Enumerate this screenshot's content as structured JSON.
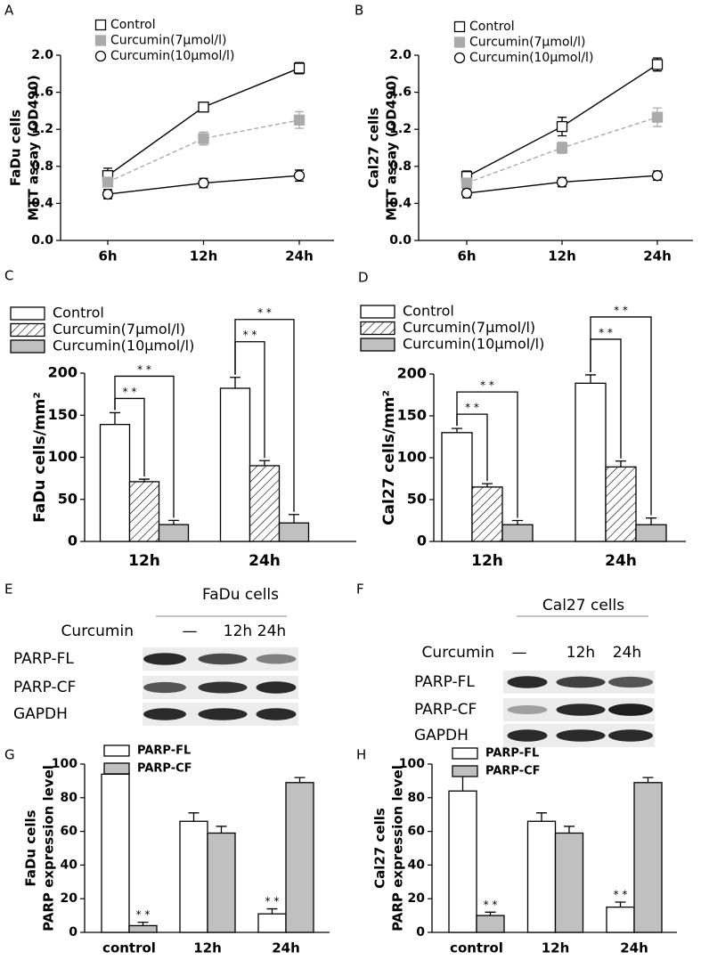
{
  "chart_data": [
    {
      "panel": "A",
      "type": "line",
      "categories": [
        "6h",
        "12h",
        "24h"
      ],
      "ylabel": [
        "FaDu cells",
        "MTT assay (OD490)"
      ],
      "ylim": [
        0,
        2
      ],
      "yticks": [
        {
          "value": 0,
          "label": "0.0"
        },
        0.4,
        0.8,
        1.2,
        1.6,
        {
          "value": 2,
          "label": "2.0"
        }
      ],
      "series": [
        {
          "name": "Control",
          "color": "#000000",
          "marker": "square",
          "filled": false,
          "dashed": false,
          "values": [
            0.7,
            1.44,
            1.86
          ],
          "errors": [
            0.08,
            0.05,
            0.06
          ]
        },
        {
          "name": "Curcumin(7μmol/l)",
          "color": "#aaaaaa",
          "marker": "square",
          "filled": true,
          "dashed": true,
          "values": [
            0.63,
            1.1,
            1.3
          ],
          "errors": [
            0.05,
            0.07,
            0.09
          ]
        },
        {
          "name": "Curcumin(10μmol/l)",
          "color": "#000000",
          "marker": "circle",
          "filled": false,
          "dashed": false,
          "values": [
            0.5,
            0.62,
            0.7
          ],
          "errors": [
            0.05,
            0.05,
            0.06
          ]
        }
      ]
    },
    {
      "panel": "B",
      "type": "line",
      "categories": [
        "6h",
        "12h",
        "24h"
      ],
      "ylabel": [
        "Cal27 cells",
        "MTT assay (OD490)"
      ],
      "ylim": [
        0,
        2
      ],
      "yticks": [
        {
          "value": 0,
          "label": "0.0"
        },
        0.4,
        0.8,
        1.2,
        1.6,
        {
          "value": 2,
          "label": "2.0"
        }
      ],
      "series": [
        {
          "name": "Control",
          "color": "#000000",
          "marker": "square",
          "filled": false,
          "dashed": false,
          "values": [
            0.69,
            1.23,
            1.9
          ],
          "errors": [
            0.06,
            0.1,
            0.07
          ]
        },
        {
          "name": "Curcumin(7μmol/l)",
          "color": "#aaaaaa",
          "marker": "square",
          "filled": true,
          "dashed": true,
          "values": [
            0.62,
            1.0,
            1.33
          ],
          "errors": [
            0.05,
            0.06,
            0.1
          ]
        },
        {
          "name": "Curcumin(10μmol/l)",
          "color": "#000000",
          "marker": "circle",
          "filled": false,
          "dashed": false,
          "values": [
            0.51,
            0.63,
            0.7
          ],
          "errors": [
            0.05,
            0.05,
            0.05
          ]
        }
      ]
    },
    {
      "panel": "C",
      "type": "bar",
      "categories": [
        "12h",
        "24h"
      ],
      "ylabel": [
        "FaDu cells/mm²"
      ],
      "ylim": [
        0,
        200
      ],
      "yticks": [
        0,
        50,
        100,
        150,
        200
      ],
      "series": [
        {
          "name": "Control",
          "color": "#ffffff",
          "values": [
            139,
            182
          ],
          "errors": [
            14,
            13
          ]
        },
        {
          "name": "Curcumin(7μmol/l)",
          "color": "#ffffff",
          "pattern": "hatch",
          "values": [
            71,
            90
          ],
          "errors": [
            3,
            6
          ]
        },
        {
          "name": "Curcumin(10μmol/l)",
          "color": "#c0c0c0",
          "values": [
            20,
            22
          ],
          "errors": [
            5,
            10
          ]
        }
      ],
      "annotations": [
        "* *",
        "* *",
        "* *",
        "* *"
      ]
    },
    {
      "panel": "D",
      "type": "bar",
      "categories": [
        "12h",
        "24h"
      ],
      "ylabel": [
        "Cal27 cells/mm²"
      ],
      "ylim": [
        0,
        200
      ],
      "yticks": [
        0,
        50,
        100,
        150,
        200
      ],
      "series": [
        {
          "name": "Control",
          "color": "#ffffff",
          "values": [
            130,
            189
          ],
          "errors": [
            5,
            10
          ]
        },
        {
          "name": "Curcumin(7μmol/l)",
          "color": "#ffffff",
          "pattern": "hatch",
          "values": [
            65,
            89
          ],
          "errors": [
            4,
            7
          ]
        },
        {
          "name": "Curcumin(10μmol/l)",
          "color": "#c0c0c0",
          "values": [
            20,
            20
          ],
          "errors": [
            5,
            8
          ]
        }
      ],
      "annotations": [
        "* *",
        "* *",
        "* *",
        "* *"
      ]
    },
    {
      "panel": "G",
      "type": "bar",
      "categories": [
        "control",
        "12h",
        "24h"
      ],
      "ylabel": [
        "FaDu cells",
        "PARP expression level"
      ],
      "ylim": [
        0,
        100
      ],
      "yticks": [
        0,
        20,
        40,
        60,
        80,
        100
      ],
      "series": [
        {
          "name": "PARP-FL",
          "color": "#ffffff",
          "values": [
            94,
            66,
            11
          ],
          "errors": [
            3,
            5,
            3
          ]
        },
        {
          "name": "PARP-CF",
          "color": "#c0c0c0",
          "values": [
            4,
            59,
            89
          ],
          "errors": [
            2,
            4,
            3
          ]
        }
      ],
      "annotations": [
        "* *",
        "* *"
      ]
    },
    {
      "panel": "H",
      "type": "bar",
      "categories": [
        "control",
        "12h",
        "24h"
      ],
      "ylabel": [
        "Cal27 cells",
        "PARP  expression level"
      ],
      "ylim": [
        0,
        100
      ],
      "yticks": [
        0,
        20,
        40,
        60,
        80,
        100
      ],
      "series": [
        {
          "name": "PARP-FL",
          "color": "#ffffff",
          "values": [
            84,
            66,
            15
          ],
          "errors": [
            11,
            5,
            3
          ]
        },
        {
          "name": "PARP-CF",
          "color": "#c0c0c0",
          "values": [
            10,
            59,
            89
          ],
          "errors": [
            2,
            4,
            3
          ]
        }
      ],
      "annotations": [
        "* *",
        "* *"
      ]
    }
  ],
  "blots": [
    {
      "panel": "E",
      "title": "FaDu cells",
      "treatment": "Curcumin",
      "lanes": [
        "—",
        "12h",
        "24h"
      ],
      "rows": [
        "PARP-FL",
        "PARP-CF",
        "GAPDH"
      ]
    },
    {
      "panel": "F",
      "title": "Cal27 cells",
      "treatment": "Curcumin",
      "lanes": [
        "—",
        "12h",
        "24h"
      ],
      "rows": [
        "PARP-FL",
        "PARP-CF",
        "GAPDH"
      ]
    }
  ]
}
